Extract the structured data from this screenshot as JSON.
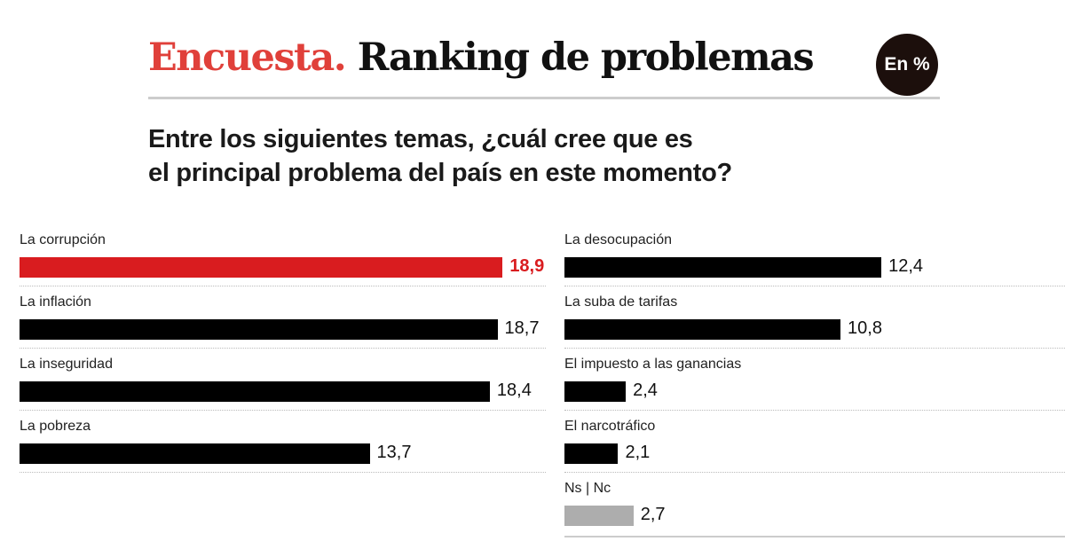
{
  "header": {
    "title_accent": "Encuesta.",
    "title_main": "Ranking de problemas",
    "badge": "En %",
    "question_line1": "Entre los siguientes temas, ¿cuál cree que es",
    "question_line2": "el principal problema del país en este momento?"
  },
  "colors": {
    "accent": "#d91c1f",
    "bar": "#000000",
    "nsnc": "#adadad"
  },
  "chart_data": {
    "type": "bar",
    "orientation": "horizontal",
    "unit": "%",
    "title": "Encuesta. Ranking de problemas",
    "categories": [
      "La corrupción",
      "La inflación",
      "La inseguridad",
      "La pobreza",
      "La desocupación",
      "La suba de tarifas",
      "El impuesto a las ganancias",
      "El narcotráfico",
      "Ns | Nc"
    ],
    "values": [
      18.9,
      18.7,
      18.4,
      13.7,
      12.4,
      10.8,
      2.4,
      2.1,
      2.7
    ],
    "labels": [
      "18,9",
      "18,7",
      "18,4",
      "13,7",
      "12,4",
      "10,8",
      "2,4",
      "2,1",
      "2,7"
    ],
    "bar_colors": [
      "#d91c1f",
      "#000000",
      "#000000",
      "#000000",
      "#000000",
      "#000000",
      "#000000",
      "#000000",
      "#adadad"
    ],
    "columns": [
      [
        0,
        1,
        2,
        3
      ],
      [
        4,
        5,
        6,
        7,
        8
      ]
    ],
    "grid": false
  }
}
